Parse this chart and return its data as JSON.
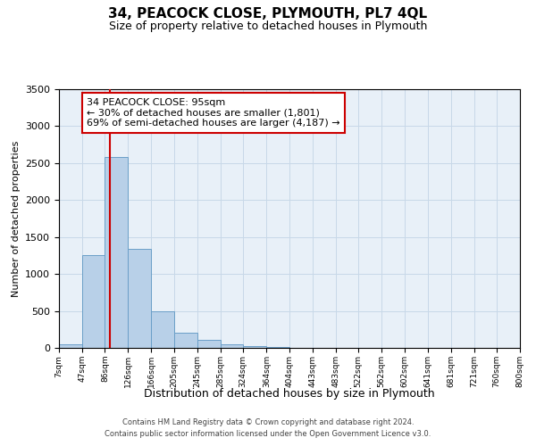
{
  "title": "34, PEACOCK CLOSE, PLYMOUTH, PL7 4QL",
  "subtitle": "Size of property relative to detached houses in Plymouth",
  "xlabel": "Distribution of detached houses by size in Plymouth",
  "ylabel": "Number of detached properties",
  "bar_color": "#b8d0e8",
  "bar_edge_color": "#6a9fc8",
  "background_color": "#ffffff",
  "plot_bg_color": "#e8f0f8",
  "grid_color": "#c8d8e8",
  "annotation_line1": "34 PEACOCK CLOSE: 95sqm",
  "annotation_line2": "← 30% of detached houses are smaller (1,801)",
  "annotation_line3": "69% of semi-detached houses are larger (4,187) →",
  "vline_x": 95,
  "vline_color": "#cc0000",
  "ylim": [
    0,
    3500
  ],
  "tick_labels": [
    "7sqm",
    "47sqm",
    "86sqm",
    "126sqm",
    "166sqm",
    "205sqm",
    "245sqm",
    "285sqm",
    "324sqm",
    "364sqm",
    "404sqm",
    "443sqm",
    "483sqm",
    "522sqm",
    "562sqm",
    "602sqm",
    "641sqm",
    "681sqm",
    "721sqm",
    "760sqm",
    "800sqm"
  ],
  "bin_edges": [
    7,
    47,
    86,
    126,
    166,
    205,
    245,
    285,
    324,
    364,
    404,
    443,
    483,
    522,
    562,
    602,
    641,
    681,
    721,
    760,
    800
  ],
  "bar_heights": [
    50,
    1250,
    2580,
    1340,
    500,
    200,
    110,
    50,
    30,
    10,
    5,
    5,
    2,
    1,
    1,
    1,
    0,
    0,
    0,
    0
  ],
  "footer_line1": "Contains HM Land Registry data © Crown copyright and database right 2024.",
  "footer_line2": "Contains public sector information licensed under the Open Government Licence v3.0.",
  "yticks": [
    0,
    500,
    1000,
    1500,
    2000,
    2500,
    3000,
    3500
  ]
}
